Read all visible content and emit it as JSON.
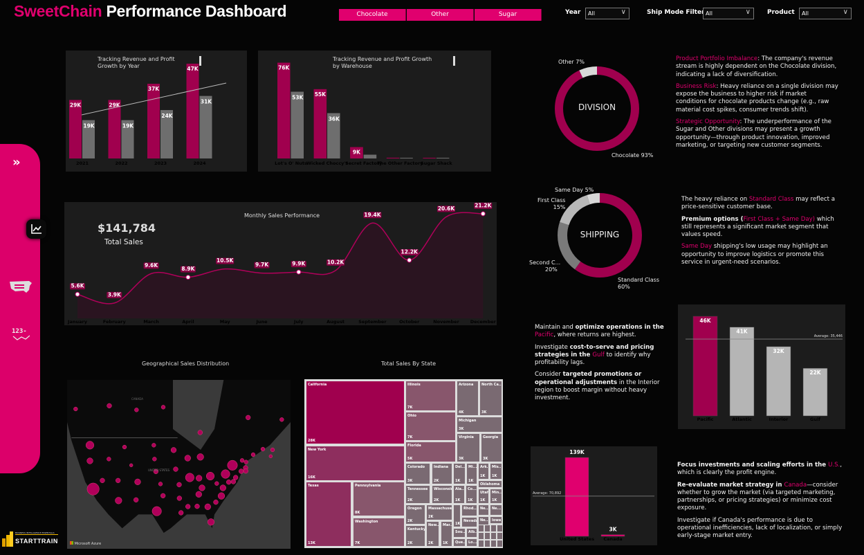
{
  "header": {
    "title_accent": "SweetChain",
    "title_rest": " Performance Dashboard"
  },
  "slicer": {
    "buttons": [
      "Chocolate",
      "Other",
      "Sugar"
    ]
  },
  "filters": [
    {
      "label": "Year",
      "value": "All"
    },
    {
      "label": "Ship Mode Filter",
      "value": "All"
    },
    {
      "label": "Product",
      "value": "All"
    }
  ],
  "sidebar": {
    "icons": [
      "chevron-double-right-icon",
      "line-chart-icon",
      "us-map-icon",
      "numbers-trend-icon"
    ],
    "numbers_text": "123-"
  },
  "logo": {
    "text": "STARTTRAIN",
    "subtitle": "BUSINESS INTELLIGENCE ESSENTIALS"
  },
  "colors": {
    "accent": "#e0006e",
    "bar": "#a0004e",
    "profit": "#6e6e6e",
    "panel": "#1c1c1c"
  },
  "kpi": {
    "value": "$141,784",
    "label": "Total Sales"
  },
  "map": {
    "title": "Geographical Sales Distribution",
    "country_us": "UNITED STATES",
    "country_ca": "CANADA",
    "brand": "Microsoft Azure"
  },
  "treemap": {
    "title": "Total Sales By State",
    "states": [
      {
        "name": "California",
        "value": "28K"
      },
      {
        "name": "New York",
        "value": "16K"
      },
      {
        "name": "Texas",
        "value": "13K"
      },
      {
        "name": "Pennsylvania",
        "value": "8K"
      },
      {
        "name": "Washington",
        "value": "7K"
      },
      {
        "name": "Illinois",
        "value": "7K"
      },
      {
        "name": "Ohio",
        "value": "7K"
      },
      {
        "name": "Florida",
        "value": "5K"
      },
      {
        "name": "Arizona",
        "value": "4K"
      },
      {
        "name": "North Ca...",
        "value": "3K"
      },
      {
        "name": "Michigan",
        "value": "3K"
      },
      {
        "name": "Virginia",
        "value": "3K"
      },
      {
        "name": "Georgia",
        "value": "3K"
      },
      {
        "name": "Colorado",
        "value": "3K"
      },
      {
        "name": "Indiana",
        "value": "2K"
      },
      {
        "name": "Del...",
        "value": "1K"
      },
      {
        "name": "Mi...",
        "value": "1K"
      },
      {
        "name": "Ark...",
        "value": "1K"
      },
      {
        "name": "Mis...",
        "value": "1K"
      },
      {
        "name": "Oklahoma",
        "value": ""
      },
      {
        "name": "Tennessee",
        "value": "2K"
      },
      {
        "name": "Wisconsin",
        "value": "2K"
      },
      {
        "name": "Ala...",
        "value": "1K"
      },
      {
        "name": "Co...",
        "value": "1K"
      },
      {
        "name": "Utah",
        "value": "1K"
      },
      {
        "name": "Min...",
        "value": "1K"
      },
      {
        "name": "Oregon",
        "value": "2K"
      },
      {
        "name": "Massachuse...",
        "value": "2K"
      },
      {
        "name": "Kentucky",
        "value": "2K"
      },
      {
        "name": "New...",
        "value": "2K"
      },
      {
        "name": "Mar...",
        "value": "1K"
      },
      {
        "name": "",
        "value": "1K"
      },
      {
        "name": "Rhod...",
        "value": ""
      },
      {
        "name": "Nevada",
        "value": ""
      },
      {
        "name": "Ne...",
        "value": ""
      },
      {
        "name": "Ne...",
        "value": ""
      },
      {
        "name": "Ne...",
        "value": ""
      },
      {
        "name": "Iowa",
        "value": ""
      },
      {
        "name": "Sou...",
        "value": ""
      },
      {
        "name": "Alb...",
        "value": ""
      },
      {
        "name": "Que...",
        "value": ""
      },
      {
        "name": "Lo...",
        "value": ""
      }
    ]
  },
  "insights": {
    "division": [
      [
        {
          "t": "Product Portfolio Imbalance",
          "s": "p"
        },
        {
          "t": ": The company's revenue stream is highly dependent on the Chocolate division, indicating a lack of diversification.",
          "s": "n"
        }
      ],
      [
        {
          "t": "Business Risk",
          "s": "p"
        },
        {
          "t": ": Heavy reliance on a single division may expose the business to higher risk if market conditions for chocolate products change (e.g., raw material cost spikes, consumer trends shift).",
          "s": "n"
        }
      ],
      [
        {
          "t": "Strategic Opportunity",
          "s": "p"
        },
        {
          "t": ": The underperformance of the Sugar and Other divisions may present a growth opportunity—through product innovation, improved marketing, or targeting new customer segments.",
          "s": "n"
        }
      ]
    ],
    "shipping": [
      [
        {
          "t": "The heavy reliance on ",
          "s": "n"
        },
        {
          "t": "Standard Class",
          "s": "p"
        },
        {
          "t": " may reflect a price-sensitive customer base.",
          "s": "n"
        }
      ],
      [
        {
          "t": "Premium options (",
          "s": "b"
        },
        {
          "t": "First Class + Same Day)",
          "s": "p"
        },
        {
          "t": " which still represents a significant market segment that values speed.",
          "s": "n"
        }
      ],
      [
        {
          "t": "Same Day",
          "s": "p"
        },
        {
          "t": " shipping's low usage may highlight an opportunity to improve logistics or promote this service in urgent-need scenarios.",
          "s": "n"
        }
      ]
    ],
    "region": [
      [
        {
          "t": "Maintain and ",
          "s": "n"
        },
        {
          "t": "optimize operations in the ",
          "s": "b"
        },
        {
          "t": "Pacific",
          "s": "p"
        },
        {
          "t": ", where returns are highest.",
          "s": "n"
        }
      ],
      [
        {
          "t": "Investigate ",
          "s": "n"
        },
        {
          "t": "cost-to-serve and pricing strategies in the ",
          "s": "b"
        },
        {
          "t": "Gulf",
          "s": "p"
        },
        {
          "t": " to identify why profitability lags.",
          "s": "n"
        }
      ],
      [
        {
          "t": "Consider ",
          "s": "n"
        },
        {
          "t": "targeted promotions or operational adjustments",
          "s": "b"
        },
        {
          "t": " in the Interior region to boost margin without heavy investment.",
          "s": "n"
        }
      ]
    ],
    "country": [
      [
        {
          "t": "Focus investments and scaling efforts in the ",
          "s": "b"
        },
        {
          "t": "U.S.",
          "s": "p"
        },
        {
          "t": ", which is clearly the profit engine.",
          "s": "n"
        }
      ],
      [
        {
          "t": "Re-evaluate market strategy in ",
          "s": "b"
        },
        {
          "t": "Canada",
          "s": "p"
        },
        {
          "t": "—consider whether to grow the market (via targeted marketing, partnerships, or pricing strategies) or minimize cost exposure.",
          "s": "n"
        }
      ],
      [
        {
          "t": "Investigate if Canada's performance is due to operational inefficiencies, lack of localization, or simply early-stage market entry.",
          "s": "n"
        }
      ]
    ]
  },
  "chart_data": [
    {
      "id": "year",
      "type": "bar",
      "title": "Tracking Revenue and Profit Growth by Year",
      "categories": [
        "2021",
        "2022",
        "2023",
        "2024"
      ],
      "series": [
        {
          "name": "Revenue",
          "values": [
            29,
            29,
            37,
            47
          ],
          "labels": [
            "29K",
            "29K",
            "37K",
            "47K"
          ]
        },
        {
          "name": "Profit",
          "values": [
            19,
            19,
            24,
            31
          ],
          "labels": [
            "19K",
            "19K",
            "24K",
            "31K"
          ]
        }
      ],
      "trendline": true
    },
    {
      "id": "warehouse",
      "type": "bar",
      "title": "Tracking Revenue and Profit Growth by Warehouse",
      "categories": [
        "Lot's O' Nuts",
        "Wicked Choccy's",
        "Secret Factory",
        "The Other Factory",
        "Sugar Shack"
      ],
      "series": [
        {
          "name": "Revenue",
          "values": [
            76,
            55,
            9,
            0.6,
            0.2
          ],
          "labels": [
            "76K",
            "55K",
            "9K",
            "",
            ""
          ]
        },
        {
          "name": "Profit",
          "values": [
            53,
            36,
            3,
            0.2,
            0.1
          ],
          "labels": [
            "53K",
            "36K",
            "",
            "",
            ""
          ]
        }
      ]
    },
    {
      "id": "monthly",
      "type": "line",
      "title": "Monthly Sales Performance",
      "categories": [
        "January",
        "February",
        "March",
        "April",
        "May",
        "June",
        "July",
        "August",
        "September",
        "October",
        "November",
        "December"
      ],
      "values": [
        5.6,
        3.9,
        9.6,
        8.9,
        10.5,
        9.7,
        9.9,
        10.2,
        19.4,
        12.2,
        20.6,
        21.2
      ],
      "labels": [
        "5.6K",
        "3.9K",
        "9.6K",
        "8.9K",
        "10.5K",
        "9.7K",
        "9.9K",
        "10.2K",
        "19.4K",
        "12.2K",
        "20.6K",
        "21.2K"
      ]
    },
    {
      "id": "division",
      "type": "pie",
      "center_label": "DIVISION",
      "slices": [
        {
          "name": "Chocolate",
          "value": 93,
          "label": "Chocolate 93%"
        },
        {
          "name": "Other",
          "value": 7,
          "label": "Other 7%"
        }
      ]
    },
    {
      "id": "shipping",
      "type": "pie",
      "center_label": "SHIPPING",
      "slices": [
        {
          "name": "Standard Class",
          "value": 60,
          "label": "Standard Class",
          "pct": "60%"
        },
        {
          "name": "Second Class",
          "value": 20,
          "label": "Second C...",
          "pct": "20%"
        },
        {
          "name": "First Class",
          "value": 15,
          "label": "First Class",
          "pct": "15%"
        },
        {
          "name": "Same Day",
          "value": 5,
          "label": "Same Day 5%",
          "pct": ""
        }
      ]
    },
    {
      "id": "region",
      "type": "bar",
      "categories": [
        "Pacific",
        "Atlantic",
        "Interior",
        "Gulf"
      ],
      "values": [
        46,
        41,
        32,
        22
      ],
      "labels": [
        "46K",
        "41K",
        "32K",
        "22K"
      ],
      "average": 35.446,
      "average_label": "Average: 35,446"
    },
    {
      "id": "country",
      "type": "bar",
      "categories": [
        "United States",
        "Canada"
      ],
      "values": [
        139,
        3
      ],
      "labels": [
        "139K",
        "3K"
      ],
      "average": 70.892,
      "average_label": "Average: 70,892"
    }
  ]
}
